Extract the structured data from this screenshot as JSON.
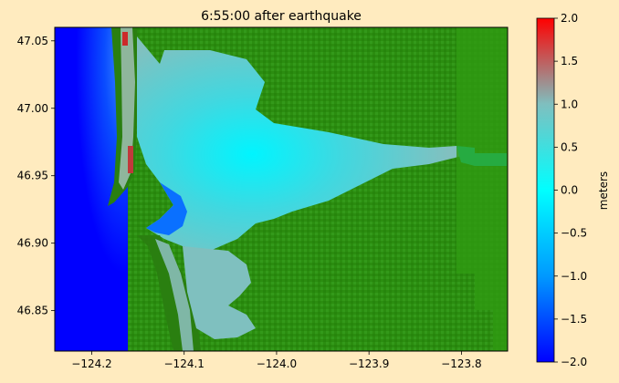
{
  "figure": {
    "title": "6:55:00 after earthquake",
    "background": "#ffebbf"
  },
  "chart_data": {
    "type": "heatmap",
    "title": "6:55:00 after earthquake",
    "xlabel": "",
    "ylabel": "",
    "xlim": [
      -124.24,
      -123.75
    ],
    "ylim": [
      46.82,
      47.06
    ],
    "xticks": [
      -124.2,
      -124.1,
      -124.0,
      -123.9,
      -123.8
    ],
    "xtick_labels": [
      "−124.2",
      "−124.1",
      "−124.0",
      "−123.9",
      "−123.8"
    ],
    "yticks": [
      46.85,
      46.9,
      46.95,
      47.0,
      47.05
    ],
    "ytick_labels": [
      "46.85",
      "46.90",
      "46.95",
      "47.00",
      "47.05"
    ],
    "colorbar": {
      "label": "meters",
      "range": [
        -2.0,
        2.0
      ],
      "ticks": [
        -2.0,
        -1.5,
        -1.0,
        -0.5,
        0.0,
        0.5,
        1.0,
        1.5,
        2.0
      ],
      "tick_labels": [
        "−2.0",
        "−1.5",
        "−1.0",
        "−0.5",
        "0.0",
        "0.5",
        "1.0",
        "1.5",
        "2.0"
      ],
      "stops": [
        "#0000ff",
        "#0099ff",
        "#00ffff",
        "#7fbfbf",
        "#ff0000"
      ]
    },
    "colors": {
      "land": "#2a8c0e",
      "land_dark": "#1e7a0a",
      "ocean_deep": "#0000ff",
      "ocean_mid": "#0a5cff",
      "bay_water": "#7fc2c0",
      "channel_water": "#00f0ff"
    },
    "grid": false
  }
}
